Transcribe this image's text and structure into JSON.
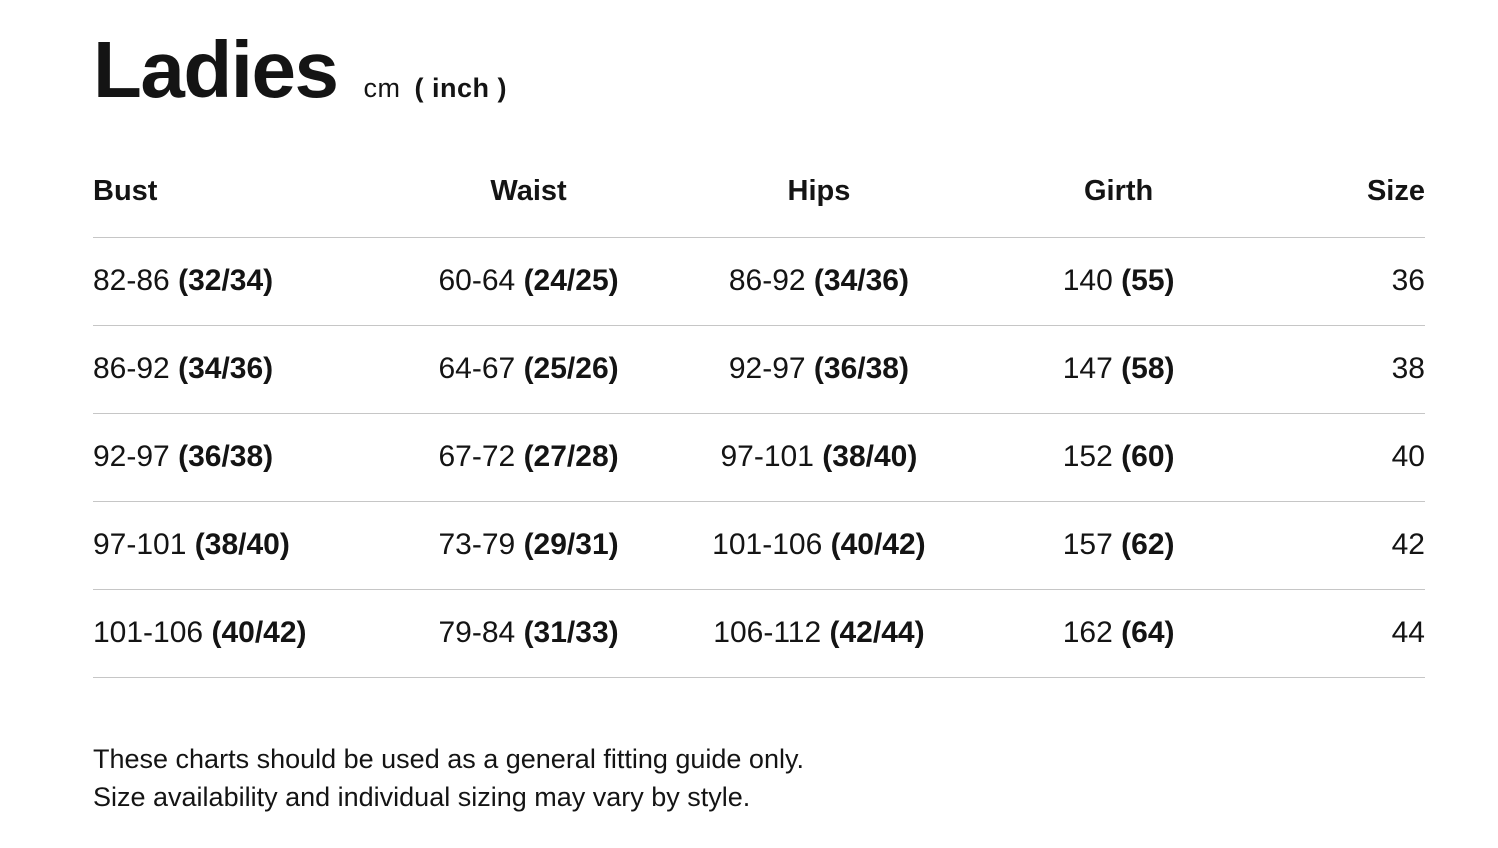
{
  "header": {
    "title": "Ladies",
    "unit_primary": "cm",
    "unit_secondary": "( inch )"
  },
  "table": {
    "columns": [
      {
        "label": "Bust"
      },
      {
        "label": "Waist"
      },
      {
        "label": "Hips"
      },
      {
        "label": "Girth"
      },
      {
        "label": "Size"
      }
    ],
    "rows": [
      {
        "bust": {
          "cm": "82-86",
          "inch": "(32/34)"
        },
        "waist": {
          "cm": "60-64",
          "inch": "(24/25)"
        },
        "hips": {
          "cm": "86-92",
          "inch": "(34/36)"
        },
        "girth": {
          "cm": "140",
          "inch": "(55)"
        },
        "size": "36"
      },
      {
        "bust": {
          "cm": "86-92",
          "inch": "(34/36)"
        },
        "waist": {
          "cm": "64-67",
          "inch": "(25/26)"
        },
        "hips": {
          "cm": "92-97",
          "inch": "(36/38)"
        },
        "girth": {
          "cm": "147",
          "inch": "(58)"
        },
        "size": "38"
      },
      {
        "bust": {
          "cm": "92-97",
          "inch": "(36/38)"
        },
        "waist": {
          "cm": "67-72",
          "inch": "(27/28)"
        },
        "hips": {
          "cm": "97-101",
          "inch": "(38/40)"
        },
        "girth": {
          "cm": "152",
          "inch": "(60)"
        },
        "size": "40"
      },
      {
        "bust": {
          "cm": "97-101",
          "inch": "(38/40)"
        },
        "waist": {
          "cm": "73-79",
          "inch": "(29/31)"
        },
        "hips": {
          "cm": "101-106",
          "inch": "(40/42)"
        },
        "girth": {
          "cm": "157",
          "inch": "(62)"
        },
        "size": "42"
      },
      {
        "bust": {
          "cm": "101-106",
          "inch": "(40/42)"
        },
        "waist": {
          "cm": "79-84",
          "inch": "(31/33)"
        },
        "hips": {
          "cm": "106-112",
          "inch": "(42/44)"
        },
        "girth": {
          "cm": "162",
          "inch": "(64)"
        },
        "size": "44"
      }
    ]
  },
  "notes": [
    "These charts should be used as a general fitting guide only.",
    "Size availability and individual sizing may vary by style."
  ],
  "colors": {
    "text": "#141414",
    "divider": "#c6c6c6",
    "background": "#ffffff"
  }
}
